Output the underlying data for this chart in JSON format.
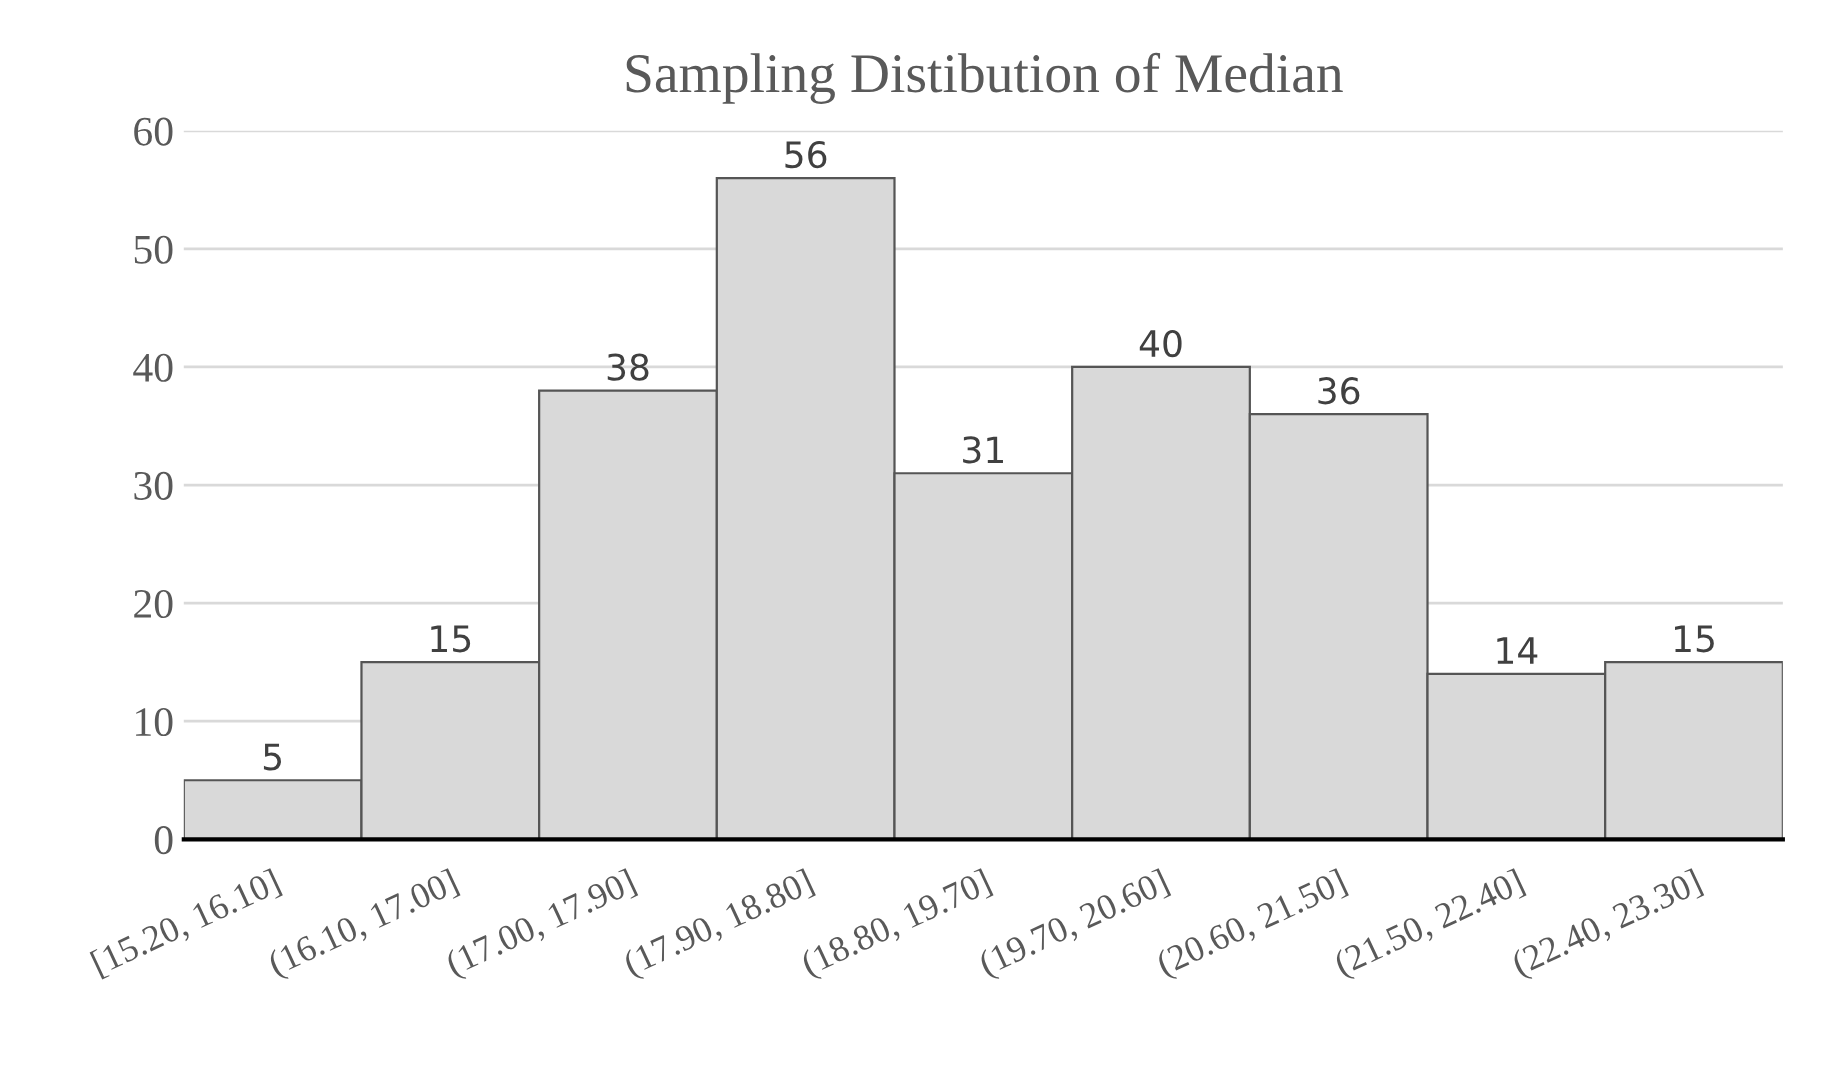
{
  "chart_data": {
    "type": "bar",
    "title": "Sampling Distibution of Median",
    "categories": [
      "[15.20, 16.10]",
      "(16.10, 17.00]",
      "(17.00, 17.90]",
      "(17.90, 18.80]",
      "(18.80, 19.70]",
      "(19.70, 20.60]",
      "(20.60, 21.50]",
      "(21.50, 22.40]",
      "(22.40, 23.30]"
    ],
    "values": [
      5,
      15,
      38,
      56,
      31,
      40,
      36,
      14,
      15
    ],
    "color": "#d9d9d9",
    "ylim": [
      0,
      60
    ],
    "yticks": [
      0,
      10,
      20,
      30,
      40,
      50,
      60
    ],
    "grid": "y",
    "data_labels": true
  }
}
